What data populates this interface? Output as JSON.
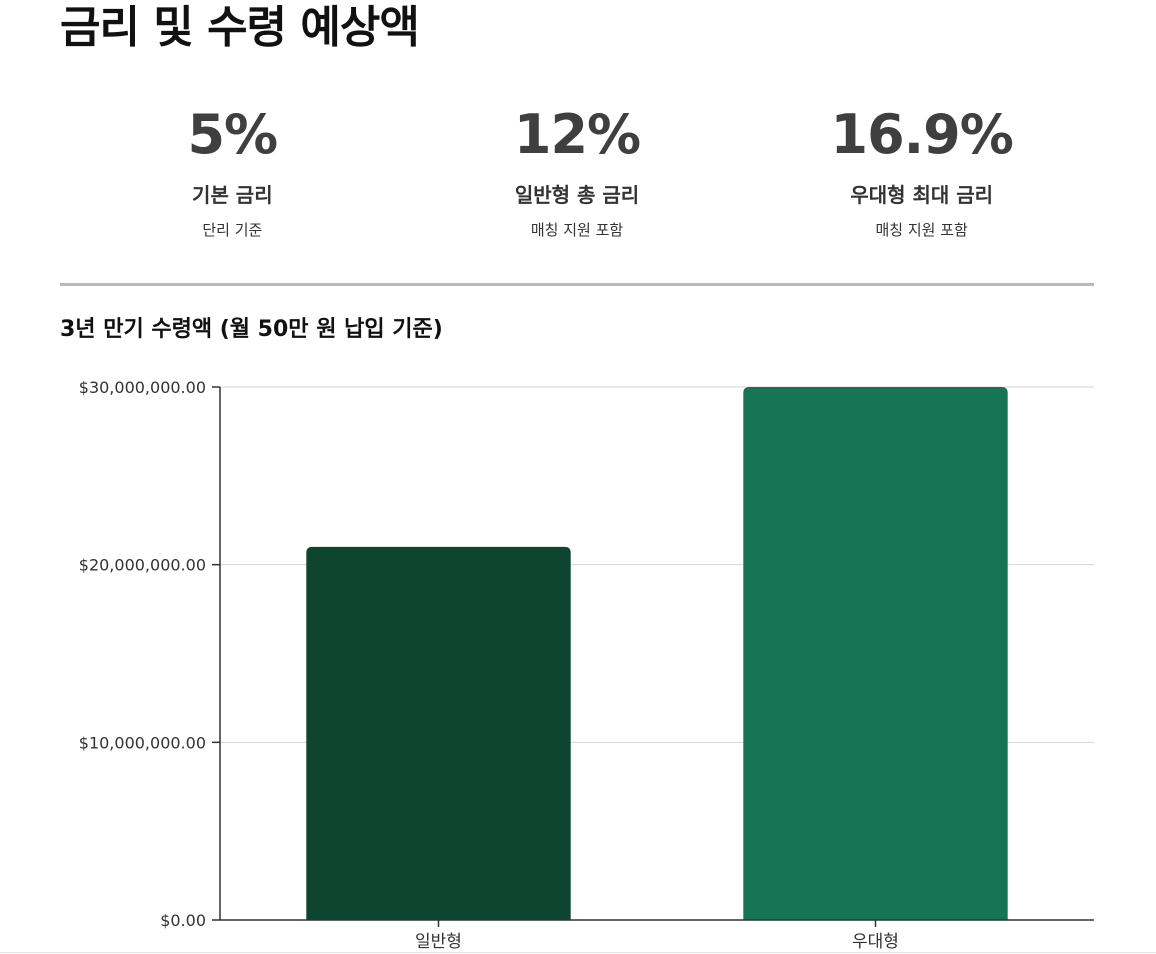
{
  "page": {
    "title": "금리 및 수령 예상액"
  },
  "stats": [
    {
      "value": "5%",
      "label": "기본 금리",
      "sub": "단리 기준"
    },
    {
      "value": "12%",
      "label": "일반형 총 금리",
      "sub": "매칭 지원 포함"
    },
    {
      "value": "16.9%",
      "label": "우대형 최대 금리",
      "sub": "매칭 지원 포함"
    }
  ],
  "chart_data": {
    "type": "bar",
    "title": "3년 만기 수령액 (월 50만 원 납입 기준)",
    "categories": [
      "일반형",
      "우대형"
    ],
    "values": [
      21000000,
      30000000
    ],
    "ylim": [
      0,
      30000000
    ],
    "yticks": [
      0,
      10000000,
      20000000,
      30000000
    ],
    "ytick_labels": [
      "$0.00",
      "$10,000,000.00",
      "$20,000,000.00",
      "$30,000,000.00"
    ],
    "colors": [
      "#0d4530",
      "#167455"
    ],
    "grid": true,
    "xlabel": "",
    "ylabel": ""
  }
}
